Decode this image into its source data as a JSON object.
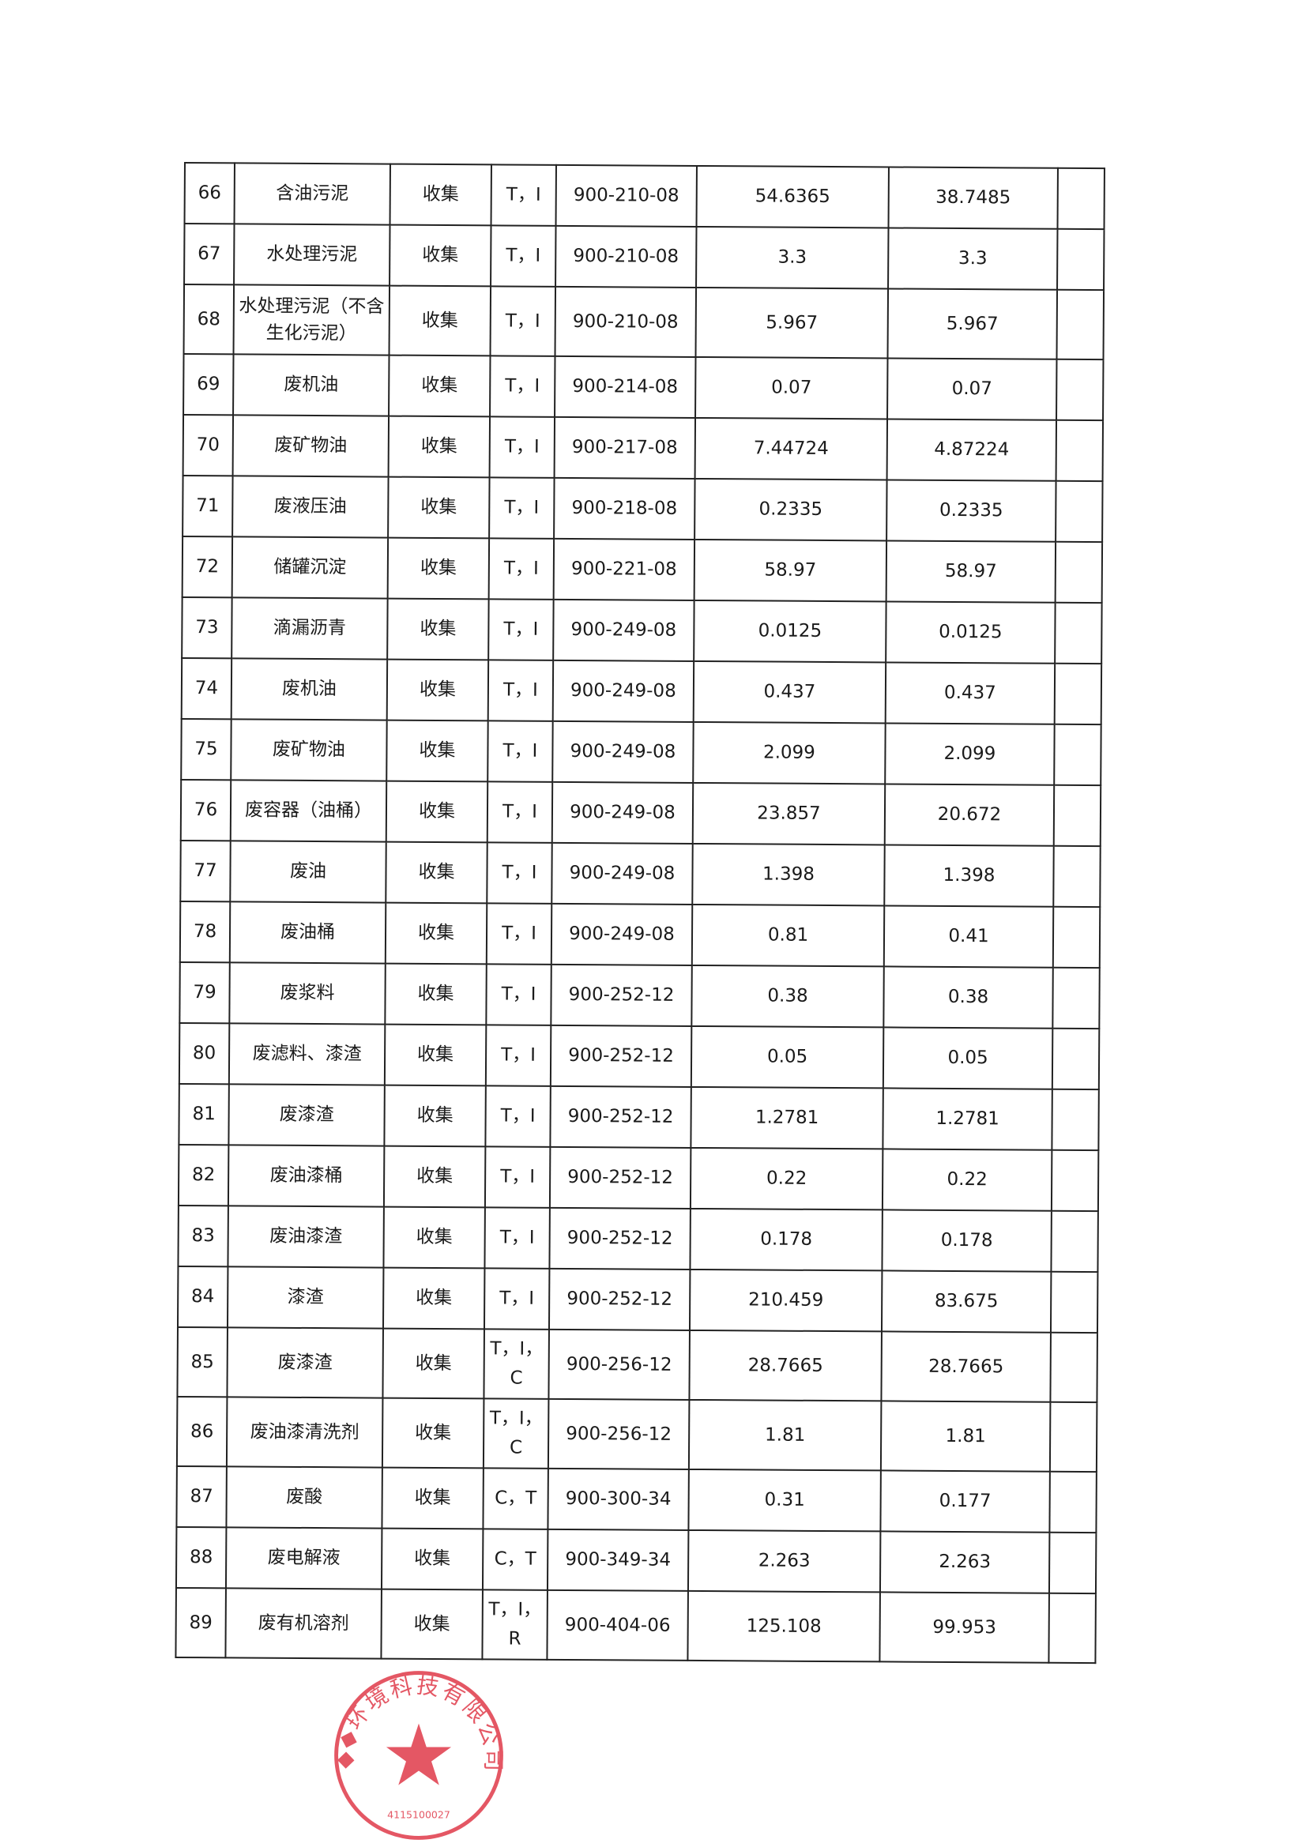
{
  "table": {
    "rows": [
      {
        "no": "66",
        "name": "含油污泥",
        "method": "收集",
        "hazard": "T，I",
        "code": "900-210-08",
        "qty1": "54.6365",
        "qty2": "38.7485",
        "note": ""
      },
      {
        "no": "67",
        "name": "水处理污泥",
        "method": "收集",
        "hazard": "T，I",
        "code": "900-210-08",
        "qty1": "3.3",
        "qty2": "3.3",
        "note": ""
      },
      {
        "no": "68",
        "name": "水处理污泥（不含生化污泥）",
        "method": "收集",
        "hazard": "T，I",
        "code": "900-210-08",
        "qty1": "5.967",
        "qty2": "5.967",
        "note": ""
      },
      {
        "no": "69",
        "name": "废机油",
        "method": "收集",
        "hazard": "T，I",
        "code": "900-214-08",
        "qty1": "0.07",
        "qty2": "0.07",
        "note": ""
      },
      {
        "no": "70",
        "name": "废矿物油",
        "method": "收集",
        "hazard": "T，I",
        "code": "900-217-08",
        "qty1": "7.44724",
        "qty2": "4.87224",
        "note": ""
      },
      {
        "no": "71",
        "name": "废液压油",
        "method": "收集",
        "hazard": "T，I",
        "code": "900-218-08",
        "qty1": "0.2335",
        "qty2": "0.2335",
        "note": ""
      },
      {
        "no": "72",
        "name": "储罐沉淀",
        "method": "收集",
        "hazard": "T，I",
        "code": "900-221-08",
        "qty1": "58.97",
        "qty2": "58.97",
        "note": ""
      },
      {
        "no": "73",
        "name": "滴漏沥青",
        "method": "收集",
        "hazard": "T，I",
        "code": "900-249-08",
        "qty1": "0.0125",
        "qty2": "0.0125",
        "note": ""
      },
      {
        "no": "74",
        "name": "废机油",
        "method": "收集",
        "hazard": "T，I",
        "code": "900-249-08",
        "qty1": "0.437",
        "qty2": "0.437",
        "note": ""
      },
      {
        "no": "75",
        "name": "废矿物油",
        "method": "收集",
        "hazard": "T，I",
        "code": "900-249-08",
        "qty1": "2.099",
        "qty2": "2.099",
        "note": ""
      },
      {
        "no": "76",
        "name": "废容器（油桶）",
        "method": "收集",
        "hazard": "T，I",
        "code": "900-249-08",
        "qty1": "23.857",
        "qty2": "20.672",
        "note": ""
      },
      {
        "no": "77",
        "name": "废油",
        "method": "收集",
        "hazard": "T，I",
        "code": "900-249-08",
        "qty1": "1.398",
        "qty2": "1.398",
        "note": ""
      },
      {
        "no": "78",
        "name": "废油桶",
        "method": "收集",
        "hazard": "T，I",
        "code": "900-249-08",
        "qty1": "0.81",
        "qty2": "0.41",
        "note": ""
      },
      {
        "no": "79",
        "name": "废浆料",
        "method": "收集",
        "hazard": "T，I",
        "code": "900-252-12",
        "qty1": "0.38",
        "qty2": "0.38",
        "note": ""
      },
      {
        "no": "80",
        "name": "废滤料、漆渣",
        "method": "收集",
        "hazard": "T，I",
        "code": "900-252-12",
        "qty1": "0.05",
        "qty2": "0.05",
        "note": ""
      },
      {
        "no": "81",
        "name": "废漆渣",
        "method": "收集",
        "hazard": "T，I",
        "code": "900-252-12",
        "qty1": "1.2781",
        "qty2": "1.2781",
        "note": ""
      },
      {
        "no": "82",
        "name": "废油漆桶",
        "method": "收集",
        "hazard": "T，I",
        "code": "900-252-12",
        "qty1": "0.22",
        "qty2": "0.22",
        "note": ""
      },
      {
        "no": "83",
        "name": "废油漆渣",
        "method": "收集",
        "hazard": "T，I",
        "code": "900-252-12",
        "qty1": "0.178",
        "qty2": "0.178",
        "note": ""
      },
      {
        "no": "84",
        "name": "漆渣",
        "method": "收集",
        "hazard": "T，I",
        "code": "900-252-12",
        "qty1": "210.459",
        "qty2": "83.675",
        "note": ""
      },
      {
        "no": "85",
        "name": "废漆渣",
        "method": "收集",
        "hazard": "T，I，C",
        "code": "900-256-12",
        "qty1": "28.7665",
        "qty2": "28.7665",
        "note": ""
      },
      {
        "no": "86",
        "name": "废油漆清洗剂",
        "method": "收集",
        "hazard": "T，I，C",
        "code": "900-256-12",
        "qty1": "1.81",
        "qty2": "1.81",
        "note": ""
      },
      {
        "no": "87",
        "name": "废酸",
        "method": "收集",
        "hazard": "C，T",
        "code": "900-300-34",
        "qty1": "0.31",
        "qty2": "0.177",
        "note": ""
      },
      {
        "no": "88",
        "name": "废电解液",
        "method": "收集",
        "hazard": "C，T",
        "code": "900-349-34",
        "qty1": "2.263",
        "qty2": "2.263",
        "note": ""
      },
      {
        "no": "89",
        "name": "废有机溶剂",
        "method": "收集",
        "hazard": "T，I，R",
        "code": "900-404-06",
        "qty1": "125.108",
        "qty2": "99.953",
        "note": ""
      }
    ]
  },
  "stamp": {
    "text": "环境科技有限公司",
    "number": "4115100027",
    "color": "#e03a4a"
  }
}
